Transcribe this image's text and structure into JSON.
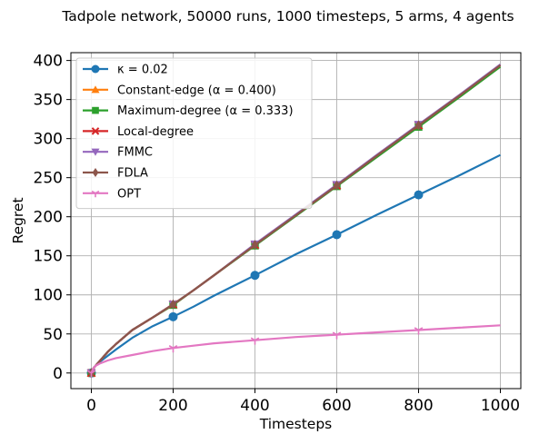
{
  "chart_data": {
    "type": "line",
    "title": "Tadpole network, 50000 runs, 1000 timesteps, 5 arms, 4 agents",
    "xlabel": "Timesteps",
    "ylabel": "Regret",
    "xlim": [
      -50,
      1050
    ],
    "ylim": [
      -20,
      410
    ],
    "xticks": [
      0,
      200,
      400,
      600,
      800,
      1000
    ],
    "yticks": [
      0,
      50,
      100,
      150,
      200,
      250,
      300,
      350,
      400
    ],
    "grid": true,
    "legend_position": "top-left",
    "x": [
      0,
      5,
      10,
      20,
      40,
      60,
      100,
      150,
      200,
      250,
      300,
      400,
      500,
      600,
      700,
      800,
      900,
      1000
    ],
    "markers_at": [
      0,
      200,
      400,
      600,
      800
    ],
    "series": [
      {
        "name": "κ = 0.02",
        "color": "#1f77b4",
        "marker": "circle",
        "values": [
          0,
          6,
          9,
          14,
          22,
          30,
          45,
          60,
          72,
          85,
          99,
          125,
          152,
          177,
          203,
          228,
          253,
          279
        ]
      },
      {
        "name": "Constant-edge (α = 0.400)",
        "color": "#ff7f0e",
        "marker": "triangle-up",
        "values": [
          0,
          6,
          9,
          15,
          27,
          37,
          55,
          71,
          87,
          106,
          125,
          164,
          202,
          240,
          279,
          317,
          355,
          394
        ]
      },
      {
        "name": "Maximum-degree (α = 0.333)",
        "color": "#2ca02c",
        "marker": "square",
        "values": [
          0,
          6,
          9,
          15,
          27,
          37,
          55,
          71,
          87,
          106,
          125,
          163,
          201,
          239,
          277,
          315,
          353,
          392
        ]
      },
      {
        "name": "Local-degree",
        "color": "#d62728",
        "marker": "x",
        "values": [
          0,
          6,
          9,
          15,
          27,
          37,
          55,
          71,
          88,
          106,
          125,
          164,
          202,
          240,
          279,
          317,
          355,
          394
        ]
      },
      {
        "name": "FMMC",
        "color": "#9467bd",
        "marker": "triangle-down",
        "values": [
          0,
          6,
          9,
          15,
          27,
          37,
          55,
          71,
          88,
          106,
          125,
          165,
          203,
          241,
          280,
          318,
          356,
          395
        ]
      },
      {
        "name": "FDLA",
        "color": "#8c564b",
        "marker": "diamond",
        "values": [
          0,
          6,
          9,
          15,
          27,
          37,
          55,
          71,
          88,
          106,
          125,
          164,
          202,
          240,
          279,
          317,
          355,
          394
        ]
      },
      {
        "name": "OPT",
        "color": "#e377c2",
        "marker": "tri-down",
        "values": [
          0,
          6,
          9,
          12,
          16,
          19,
          23,
          28,
          32,
          35,
          38,
          42,
          46,
          49,
          52,
          55,
          58,
          61
        ]
      }
    ]
  }
}
